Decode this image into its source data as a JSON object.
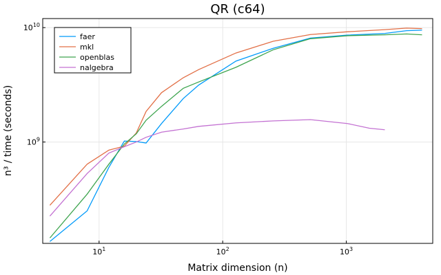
{
  "chart_data": {
    "type": "line",
    "title": "QR (c64)",
    "xlabel": "Matrix dimension (n)",
    "ylabel": "n³ / time (seconds)",
    "xscale": "log",
    "yscale": "log",
    "xlim": [
      3.5,
      5000
    ],
    "ylim": [
      130000000,
      12000000000
    ],
    "x_ticks": [
      {
        "value": 10,
        "base": "10",
        "exp": "1"
      },
      {
        "value": 100,
        "base": "10",
        "exp": "2"
      },
      {
        "value": 1000,
        "base": "10",
        "exp": "3"
      }
    ],
    "y_ticks": [
      {
        "value": 1000000000,
        "base": "10",
        "exp": "9"
      },
      {
        "value": 10000000000,
        "base": "10",
        "exp": "10"
      }
    ],
    "grid": true,
    "legend_position": "top-left",
    "series": [
      {
        "name": "faer",
        "color": "#009AFA",
        "points": [
          [
            4,
            135000000
          ],
          [
            8,
            250000000
          ],
          [
            12,
            600000000
          ],
          [
            16,
            1020000000
          ],
          [
            20,
            1010000000
          ],
          [
            24,
            980000000
          ],
          [
            32,
            1450000000
          ],
          [
            48,
            2400000000
          ],
          [
            64,
            3150000000
          ],
          [
            128,
            5100000000
          ],
          [
            256,
            6600000000
          ],
          [
            512,
            8100000000
          ],
          [
            1024,
            8600000000
          ],
          [
            2048,
            8900000000
          ],
          [
            3072,
            9400000000
          ],
          [
            4096,
            9500000000
          ]
        ]
      },
      {
        "name": "mkl",
        "color": "#E26F46",
        "points": [
          [
            4,
            280000000
          ],
          [
            8,
            640000000
          ],
          [
            12,
            850000000
          ],
          [
            16,
            920000000
          ],
          [
            20,
            1200000000
          ],
          [
            24,
            1850000000
          ],
          [
            32,
            2700000000
          ],
          [
            48,
            3650000000
          ],
          [
            64,
            4300000000
          ],
          [
            128,
            6000000000
          ],
          [
            256,
            7600000000
          ],
          [
            512,
            8700000000
          ],
          [
            1024,
            9200000000
          ],
          [
            2048,
            9600000000
          ],
          [
            3072,
            9900000000
          ],
          [
            4096,
            9800000000
          ]
        ]
      },
      {
        "name": "openblas",
        "color": "#3DA44E",
        "points": [
          [
            4,
            145000000
          ],
          [
            8,
            350000000
          ],
          [
            12,
            640000000
          ],
          [
            16,
            960000000
          ],
          [
            20,
            1180000000
          ],
          [
            24,
            1550000000
          ],
          [
            32,
            2050000000
          ],
          [
            48,
            2950000000
          ],
          [
            64,
            3350000000
          ],
          [
            128,
            4500000000
          ],
          [
            256,
            6400000000
          ],
          [
            512,
            8000000000
          ],
          [
            1024,
            8500000000
          ],
          [
            2048,
            8650000000
          ],
          [
            3072,
            8800000000
          ],
          [
            4096,
            8650000000
          ]
        ]
      },
      {
        "name": "nalgebra",
        "color": "#C371D2",
        "points": [
          [
            4,
            225000000
          ],
          [
            8,
            530000000
          ],
          [
            12,
            800000000
          ],
          [
            16,
            910000000
          ],
          [
            20,
            1000000000
          ],
          [
            24,
            1100000000
          ],
          [
            32,
            1220000000
          ],
          [
            48,
            1300000000
          ],
          [
            64,
            1370000000
          ],
          [
            128,
            1470000000
          ],
          [
            256,
            1530000000
          ],
          [
            512,
            1570000000
          ],
          [
            1024,
            1450000000
          ],
          [
            1536,
            1320000000
          ],
          [
            2048,
            1280000000
          ]
        ]
      }
    ]
  }
}
